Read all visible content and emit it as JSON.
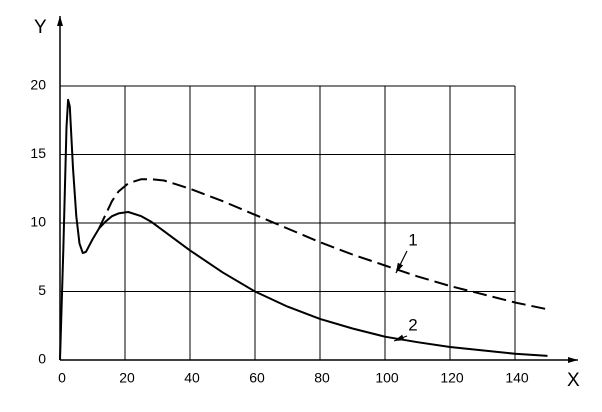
{
  "chart_data": {
    "type": "line",
    "x_label": "X",
    "y_label": "Y",
    "x": [
      0,
      1,
      2,
      2.5,
      3,
      4,
      5,
      6,
      7,
      8,
      10,
      12,
      14,
      16,
      18,
      21,
      25,
      28,
      32,
      36,
      40,
      50,
      60,
      70,
      80,
      90,
      100,
      110,
      120,
      130,
      140,
      150
    ],
    "series": [
      {
        "name": "1",
        "color": "#000000",
        "dashed": true,
        "values": [
          null,
          null,
          null,
          null,
          null,
          null,
          null,
          null,
          null,
          null,
          null,
          9.6,
          10.6,
          11.6,
          12.3,
          12.9,
          13.2,
          13.2,
          13.1,
          12.8,
          12.5,
          11.6,
          10.6,
          9.6,
          8.6,
          7.7,
          6.9,
          6.1,
          5.4,
          4.8,
          4.2,
          3.7
        ]
      },
      {
        "name": "2",
        "color": "#000000",
        "dashed": false,
        "values": [
          0,
          8,
          17,
          19,
          18.5,
          14,
          10.5,
          8.5,
          7.8,
          7.9,
          8.8,
          9.6,
          10.1,
          10.5,
          10.7,
          10.8,
          10.5,
          10.1,
          9.4,
          8.7,
          8.0,
          6.4,
          5.0,
          3.9,
          3.0,
          2.3,
          1.7,
          1.3,
          0.95,
          0.7,
          0.45,
          0.3
        ]
      }
    ],
    "xlim": [
      0,
      150
    ],
    "ylim": [
      0,
      20
    ],
    "xticks": [
      0,
      20,
      40,
      60,
      80,
      100,
      120,
      140
    ],
    "yticks": [
      0,
      5,
      10,
      15,
      20
    ],
    "grid": true
  }
}
